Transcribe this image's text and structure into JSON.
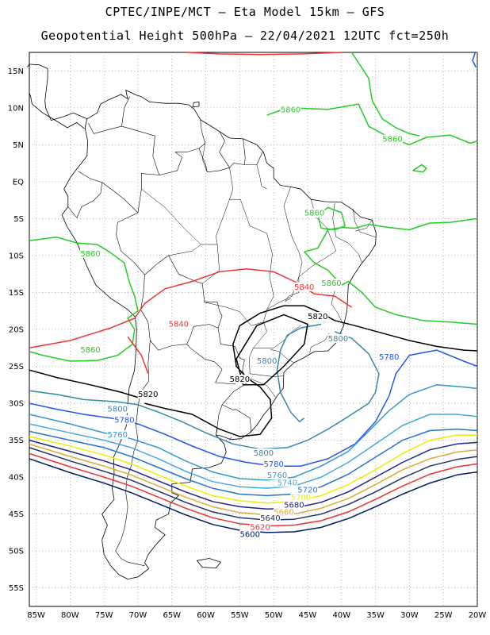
{
  "title_line1": "CPTEC/INPE/MCT –  Eta Model 15km – GFS",
  "title_line2": "Geopotential Height 500hPa – 22/04/2021 12UTC fct=250h",
  "lat_ticks": [
    "15N",
    "10N",
    "5N",
    "EQ",
    "5S",
    "10S",
    "15S",
    "20S",
    "25S",
    "30S",
    "35S",
    "40S",
    "45S",
    "50S",
    "55S"
  ],
  "lon_ticks": [
    "85W",
    "80W",
    "75W",
    "70W",
    "65W",
    "60W",
    "55W",
    "50W",
    "45W",
    "40W",
    "35W",
    "30W",
    "25W",
    "20W"
  ],
  "colors": {
    "c5860": "#22cc22",
    "c5840": "#ee3333",
    "c5820": "#000000",
    "c5800": "#3388aa",
    "c5780": "#2255ee",
    "c5760": "#3399cc",
    "c5740": "#44aadd",
    "c5720": "#2277cc",
    "c5700": "#eeee00",
    "c5680": "#222288",
    "c5660": "#ddaa33",
    "c5640": "#223366",
    "c5620": "#ee3333",
    "c5600": "#001a66",
    "coast": "#000000",
    "grid": "#888888"
  },
  "contour_labels": [
    {
      "text": "5860",
      "lon": -47.5,
      "lat": 9.5,
      "color": "#22cc22"
    },
    {
      "text": "5860",
      "lon": -32.5,
      "lat": 5.5,
      "color": "#22cc22"
    },
    {
      "text": "5860",
      "lon": -44.0,
      "lat": -4.5,
      "color": "#22cc22"
    },
    {
      "text": "5860",
      "lon": -77.0,
      "lat": -10.0,
      "color": "#22cc22"
    },
    {
      "text": "5860",
      "lon": -41.5,
      "lat": -14.0,
      "color": "#22cc22"
    },
    {
      "text": "5860",
      "lon": -77.0,
      "lat": -23.0,
      "color": "#22cc22"
    },
    {
      "text": "5840",
      "lon": -45.5,
      "lat": -14.5,
      "color": "#ee3333"
    },
    {
      "text": "5840",
      "lon": -64.0,
      "lat": -19.5,
      "color": "#ee3333"
    },
    {
      "text": "5820",
      "lon": -43.5,
      "lat": -18.5,
      "color": "#000000"
    },
    {
      "text": "5820",
      "lon": -55.0,
      "lat": -27.0,
      "color": "#000000"
    },
    {
      "text": "5820",
      "lon": -68.5,
      "lat": -29.0,
      "color": "#000000"
    },
    {
      "text": "5800",
      "lon": -40.5,
      "lat": -21.5,
      "color": "#3388aa"
    },
    {
      "text": "5800",
      "lon": -51.0,
      "lat": -24.5,
      "color": "#3388aa"
    },
    {
      "text": "5800",
      "lon": -73.0,
      "lat": -31.0,
      "color": "#3388aa"
    },
    {
      "text": "5800",
      "lon": -51.5,
      "lat": -37.0,
      "color": "#3388aa"
    },
    {
      "text": "5780",
      "lon": -33.0,
      "lat": -24.0,
      "color": "#2255ee"
    },
    {
      "text": "5780",
      "lon": -72.0,
      "lat": -32.5,
      "color": "#2255ee"
    },
    {
      "text": "5780",
      "lon": -50.0,
      "lat": -38.5,
      "color": "#2255ee"
    },
    {
      "text": "5760",
      "lon": -73.0,
      "lat": -34.5,
      "color": "#3399cc"
    },
    {
      "text": "5760",
      "lon": -49.5,
      "lat": -40.0,
      "color": "#3399cc"
    },
    {
      "text": "5740",
      "lon": -48.0,
      "lat": -41.0,
      "color": "#44aadd"
    },
    {
      "text": "5720",
      "lon": -45.0,
      "lat": -42.0,
      "color": "#2277cc"
    },
    {
      "text": "5700",
      "lon": -46.0,
      "lat": -43.0,
      "color": "#eeee00"
    },
    {
      "text": "5680",
      "lon": -47.0,
      "lat": -44.0,
      "color": "#222288"
    },
    {
      "text": "5660",
      "lon": -48.5,
      "lat": -45.0,
      "color": "#ddaa33"
    },
    {
      "text": "5640",
      "lon": -50.5,
      "lat": -45.8,
      "color": "#223366"
    },
    {
      "text": "5620",
      "lon": -52.0,
      "lat": -47.0,
      "color": "#ee3333"
    },
    {
      "text": "5600",
      "lon": -53.5,
      "lat": -48.0,
      "color": "#001a66"
    }
  ]
}
